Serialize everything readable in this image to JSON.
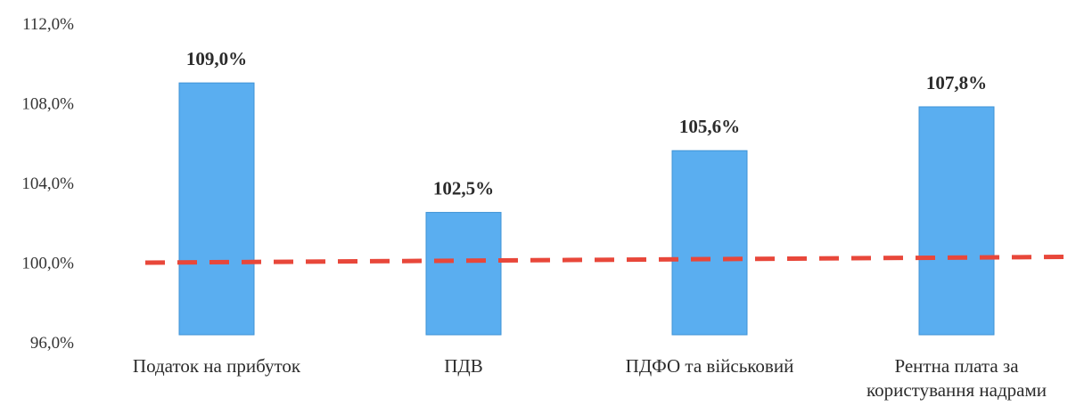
{
  "chart_data": {
    "type": "bar",
    "categories": [
      [
        "Податок на прибуток"
      ],
      [
        "ПДВ"
      ],
      [
        "ПДФО та військовий"
      ],
      [
        "Рентна плата за",
        "користування надрами"
      ]
    ],
    "values": [
      109.0,
      102.5,
      105.6,
      107.8
    ],
    "data_labels": [
      "109,0%",
      "102,5%",
      "105,6%",
      "107,8%"
    ],
    "y_ticks": [
      96.0,
      100.0,
      104.0,
      108.0,
      112.0
    ],
    "y_tick_labels": [
      "96,0%",
      "100,0%",
      "104,0%",
      "108,0%",
      "112,0%"
    ],
    "ylim": [
      96.0,
      112.0
    ],
    "reference_line": {
      "value": 100.0,
      "style": "dashed",
      "color": "#e8473a"
    },
    "bar_color": "#5aaef0",
    "bar_edge_color": "#3f93d6",
    "grid": false,
    "legend": "none",
    "title": "",
    "xlabel": "",
    "ylabel": ""
  }
}
